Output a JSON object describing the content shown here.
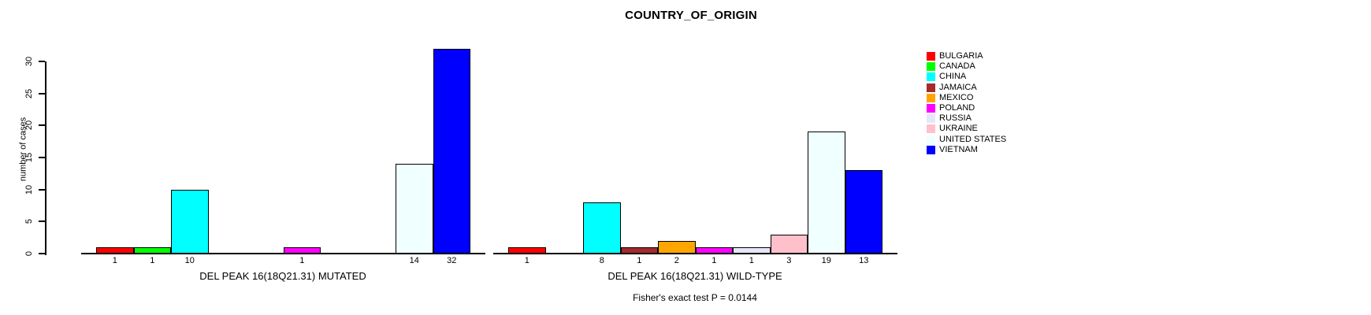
{
  "chart_data": {
    "type": "bar",
    "title": "COUNTRY_OF_ORIGIN",
    "ylabel": "number of cases",
    "categories": [
      "BULGARIA",
      "CANADA",
      "CHINA",
      "JAMAICA",
      "MEXICO",
      "POLAND",
      "RUSSIA",
      "UKRAINE",
      "UNITED STATES",
      "VIETNAM"
    ],
    "colors": {
      "BULGARIA": "#FF0000",
      "CANADA": "#00FF00",
      "CHINA": "#00FFFF",
      "JAMAICA": "#A52A2A",
      "MEXICO": "#FFA500",
      "POLAND": "#FF00FF",
      "RUSSIA": "#E6E6FA",
      "UKRAINE": "#FFC0CB",
      "UNITED STATES": "#F0FFFF",
      "VIETNAM": "#0000FF"
    },
    "panels": [
      {
        "xlabel": "DEL PEAK 16(18Q21.31) MUTATED",
        "values": [
          1,
          1,
          10,
          0,
          0,
          1,
          0,
          0,
          14,
          32
        ]
      },
      {
        "xlabel": "DEL PEAK 16(18Q21.31) WILD-TYPE",
        "values": [
          1,
          0,
          8,
          1,
          2,
          1,
          1,
          3,
          19,
          13
        ]
      }
    ],
    "yticks": [
      0,
      5,
      10,
      15,
      20,
      25,
      30
    ],
    "ylim": [
      0,
      30
    ],
    "grid": false,
    "legend_position": "right",
    "bar_value_labels": true,
    "zero_bars_unlabeled": true,
    "annotation": "Fisher's exact test P = 0.0144"
  }
}
